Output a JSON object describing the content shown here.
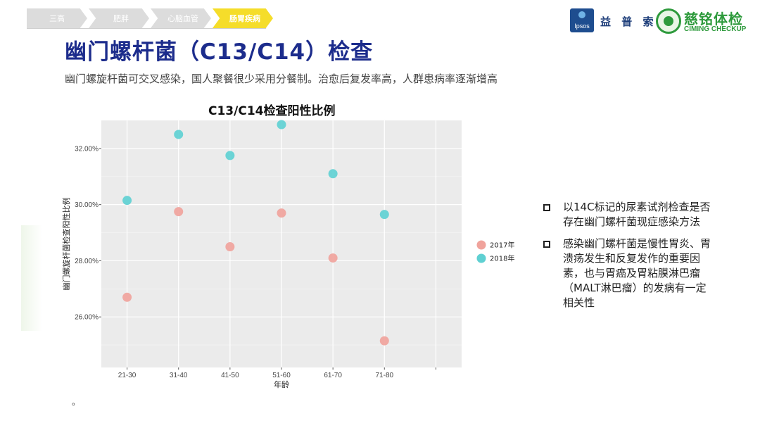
{
  "breadcrumb": [
    "三高",
    "肥胖",
    "心脑血管",
    "肠胃疾病"
  ],
  "breadcrumb_active": 3,
  "logos": {
    "ipsos_en": "Ipsos",
    "ipsos_cn": "益 普 索",
    "ciming_cn": "慈铭体检",
    "ciming_en": "CIMING CHECKUP"
  },
  "title": "幽门螺杆菌（C13/C14）检查",
  "subtitle": "幽门螺旋杆菌可交叉感染，国人聚餐很少采用分餐制。治愈后复发率高，人群患病率逐渐增高",
  "chart_data": {
    "type": "scatter",
    "title": "C13/C14检查阳性比例",
    "xlabel": "年龄",
    "ylabel": "幽门螺旋杆菌检查阳性比例",
    "categories": [
      "21-30",
      "31-40",
      "41-50",
      "51-60",
      "61-70",
      "71-80"
    ],
    "y_ticks": [
      "26.00%",
      "28.00%",
      "30.00%",
      "32.00%"
    ],
    "ylim": [
      24.2,
      33.0
    ],
    "grid": true,
    "legend_position": "right",
    "series": [
      {
        "name": "2017年",
        "color": "#f0a39c",
        "values": [
          26.7,
          29.75,
          28.5,
          29.7,
          28.1,
          25.15
        ]
      },
      {
        "name": "2018年",
        "color": "#5fd0d2",
        "values": [
          30.15,
          32.5,
          31.75,
          32.85,
          31.1,
          29.65
        ]
      }
    ]
  },
  "bullets": [
    "以14C标记的尿素试剂检查是否存在幽门螺杆菌现症感染方法",
    "感染幽门螺杆菌是慢性胃炎、胃溃疡发生和反复发作的重要因素，也与胃癌及胃粘膜淋巴瘤（MALT淋巴瘤）的发病有一定相关性"
  ],
  "footnote": "。"
}
